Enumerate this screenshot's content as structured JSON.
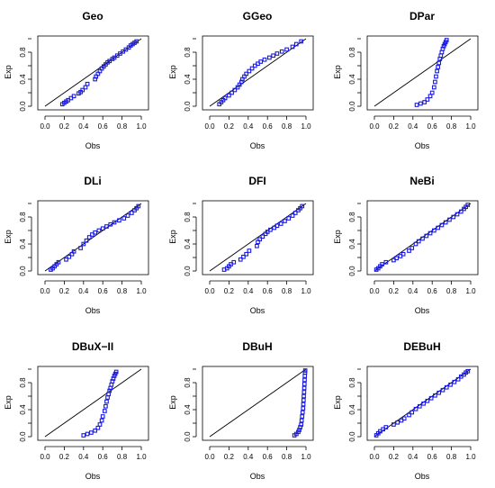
{
  "chart_data": [
    {
      "type": "scatter",
      "title": "Geo",
      "xlabel": "Obs",
      "ylabel": "Exp",
      "xlim": [
        0,
        1
      ],
      "ylim": [
        0,
        1
      ],
      "x_ticks": [
        "0.0",
        "0.2",
        "0.4",
        "0.6",
        "0.8",
        "1.0"
      ],
      "y_ticks": [
        "0.0",
        "0.4",
        "0.8"
      ],
      "reference_line": {
        "from": [
          0,
          0
        ],
        "to": [
          1,
          1
        ],
        "color": "#000000"
      },
      "point_color": "#1a1ae6",
      "grid": false,
      "points": [
        [
          0.18,
          0.03
        ],
        [
          0.2,
          0.05
        ],
        [
          0.22,
          0.07
        ],
        [
          0.24,
          0.09
        ],
        [
          0.27,
          0.12
        ],
        [
          0.3,
          0.15
        ],
        [
          0.35,
          0.19
        ],
        [
          0.37,
          0.21
        ],
        [
          0.39,
          0.24
        ],
        [
          0.42,
          0.28
        ],
        [
          0.44,
          0.33
        ],
        [
          0.52,
          0.4
        ],
        [
          0.53,
          0.44
        ],
        [
          0.55,
          0.48
        ],
        [
          0.57,
          0.52
        ],
        [
          0.59,
          0.56
        ],
        [
          0.61,
          0.59
        ],
        [
          0.63,
          0.62
        ],
        [
          0.65,
          0.65
        ],
        [
          0.67,
          0.67
        ],
        [
          0.7,
          0.7
        ],
        [
          0.72,
          0.72
        ],
        [
          0.75,
          0.75
        ],
        [
          0.78,
          0.78
        ],
        [
          0.81,
          0.81
        ],
        [
          0.84,
          0.84
        ],
        [
          0.87,
          0.87
        ],
        [
          0.89,
          0.9
        ],
        [
          0.91,
          0.92
        ],
        [
          0.93,
          0.94
        ],
        [
          0.95,
          0.96
        ]
      ]
    },
    {
      "type": "scatter",
      "title": "GGeo",
      "xlabel": "Obs",
      "ylabel": "Exp",
      "xlim": [
        0,
        1
      ],
      "ylim": [
        0,
        1
      ],
      "x_ticks": [
        "0.0",
        "0.2",
        "0.4",
        "0.6",
        "0.8",
        "1.0"
      ],
      "y_ticks": [
        "0.0",
        "0.4",
        "0.8"
      ],
      "reference_line": {
        "from": [
          0,
          0
        ],
        "to": [
          1,
          1
        ],
        "color": "#000000"
      },
      "point_color": "#1a1ae6",
      "grid": false,
      "points": [
        [
          0.1,
          0.03
        ],
        [
          0.12,
          0.06
        ],
        [
          0.14,
          0.09
        ],
        [
          0.16,
          0.12
        ],
        [
          0.2,
          0.16
        ],
        [
          0.23,
          0.2
        ],
        [
          0.26,
          0.24
        ],
        [
          0.29,
          0.28
        ],
        [
          0.31,
          0.32
        ],
        [
          0.33,
          0.36
        ],
        [
          0.34,
          0.4
        ],
        [
          0.36,
          0.44
        ],
        [
          0.38,
          0.48
        ],
        [
          0.41,
          0.52
        ],
        [
          0.44,
          0.56
        ],
        [
          0.47,
          0.6
        ],
        [
          0.5,
          0.63
        ],
        [
          0.53,
          0.66
        ],
        [
          0.57,
          0.69
        ],
        [
          0.62,
          0.72
        ],
        [
          0.66,
          0.75
        ],
        [
          0.7,
          0.78
        ],
        [
          0.75,
          0.81
        ],
        [
          0.8,
          0.84
        ],
        [
          0.86,
          0.88
        ],
        [
          0.9,
          0.92
        ],
        [
          0.95,
          0.96
        ]
      ]
    },
    {
      "type": "scatter",
      "title": "DPar",
      "xlabel": "Obs",
      "ylabel": "Exp",
      "xlim": [
        0,
        1
      ],
      "ylim": [
        0,
        1
      ],
      "x_ticks": [
        "0.0",
        "0.2",
        "0.4",
        "0.6",
        "0.8",
        "1.0"
      ],
      "y_ticks": [
        "0.0",
        "0.4",
        "0.8"
      ],
      "reference_line": {
        "from": [
          0,
          0
        ],
        "to": [
          1,
          1
        ],
        "color": "#000000"
      },
      "point_color": "#1a1ae6",
      "grid": false,
      "points": [
        [
          0.44,
          0.02
        ],
        [
          0.48,
          0.04
        ],
        [
          0.52,
          0.06
        ],
        [
          0.55,
          0.1
        ],
        [
          0.58,
          0.15
        ],
        [
          0.6,
          0.2
        ],
        [
          0.62,
          0.28
        ],
        [
          0.63,
          0.36
        ],
        [
          0.64,
          0.44
        ],
        [
          0.65,
          0.52
        ],
        [
          0.66,
          0.58
        ],
        [
          0.67,
          0.64
        ],
        [
          0.68,
          0.7
        ],
        [
          0.69,
          0.75
        ],
        [
          0.7,
          0.8
        ],
        [
          0.71,
          0.85
        ],
        [
          0.72,
          0.89
        ],
        [
          0.73,
          0.92
        ],
        [
          0.74,
          0.95
        ],
        [
          0.75,
          0.98
        ]
      ]
    },
    {
      "type": "scatter",
      "title": "DLi",
      "xlabel": "Obs",
      "ylabel": "Exp",
      "xlim": [
        0,
        1
      ],
      "ylim": [
        0,
        1
      ],
      "x_ticks": [
        "0.0",
        "0.2",
        "0.4",
        "0.6",
        "0.8",
        "1.0"
      ],
      "y_ticks": [
        "0.0",
        "0.4",
        "0.8"
      ],
      "reference_line": {
        "from": [
          0,
          0
        ],
        "to": [
          1,
          1
        ],
        "color": "#000000"
      },
      "point_color": "#1a1ae6",
      "grid": false,
      "points": [
        [
          0.06,
          0.02
        ],
        [
          0.08,
          0.04
        ],
        [
          0.1,
          0.07
        ],
        [
          0.12,
          0.1
        ],
        [
          0.14,
          0.13
        ],
        [
          0.22,
          0.17
        ],
        [
          0.25,
          0.21
        ],
        [
          0.28,
          0.25
        ],
        [
          0.3,
          0.29
        ],
        [
          0.37,
          0.34
        ],
        [
          0.4,
          0.4
        ],
        [
          0.43,
          0.45
        ],
        [
          0.46,
          0.5
        ],
        [
          0.49,
          0.54
        ],
        [
          0.52,
          0.57
        ],
        [
          0.56,
          0.6
        ],
        [
          0.6,
          0.63
        ],
        [
          0.64,
          0.66
        ],
        [
          0.68,
          0.69
        ],
        [
          0.72,
          0.72
        ],
        [
          0.77,
          0.75
        ],
        [
          0.82,
          0.78
        ],
        [
          0.86,
          0.82
        ],
        [
          0.9,
          0.86
        ],
        [
          0.93,
          0.9
        ],
        [
          0.95,
          0.93
        ],
        [
          0.97,
          0.96
        ]
      ]
    },
    {
      "type": "scatter",
      "title": "DFI",
      "xlabel": "Obs",
      "ylabel": "Exp",
      "xlim": [
        0,
        1
      ],
      "ylim": [
        0,
        1
      ],
      "x_ticks": [
        "0.0",
        "0.2",
        "0.4",
        "0.6",
        "0.8",
        "1.0"
      ],
      "y_ticks": [
        "0.0",
        "0.4",
        "0.8"
      ],
      "reference_line": {
        "from": [
          0,
          0
        ],
        "to": [
          1,
          1
        ],
        "color": "#000000"
      },
      "point_color": "#1a1ae6",
      "grid": false,
      "points": [
        [
          0.15,
          0.02
        ],
        [
          0.18,
          0.04
        ],
        [
          0.2,
          0.07
        ],
        [
          0.22,
          0.1
        ],
        [
          0.25,
          0.13
        ],
        [
          0.32,
          0.17
        ],
        [
          0.35,
          0.21
        ],
        [
          0.38,
          0.25
        ],
        [
          0.41,
          0.3
        ],
        [
          0.49,
          0.37
        ],
        [
          0.5,
          0.43
        ],
        [
          0.52,
          0.47
        ],
        [
          0.55,
          0.51
        ],
        [
          0.58,
          0.55
        ],
        [
          0.6,
          0.58
        ],
        [
          0.63,
          0.61
        ],
        [
          0.67,
          0.64
        ],
        [
          0.7,
          0.67
        ],
        [
          0.74,
          0.7
        ],
        [
          0.78,
          0.74
        ],
        [
          0.82,
          0.78
        ],
        [
          0.86,
          0.82
        ],
        [
          0.89,
          0.86
        ],
        [
          0.92,
          0.9
        ],
        [
          0.94,
          0.93
        ],
        [
          0.96,
          0.96
        ]
      ]
    },
    {
      "type": "scatter",
      "title": "NeBi",
      "xlabel": "Obs",
      "ylabel": "Exp",
      "xlim": [
        0,
        1
      ],
      "ylim": [
        0,
        1
      ],
      "x_ticks": [
        "0.0",
        "0.2",
        "0.4",
        "0.6",
        "0.8",
        "1.0"
      ],
      "y_ticks": [
        "0.0",
        "0.4",
        "0.8"
      ],
      "reference_line": {
        "from": [
          0,
          0
        ],
        "to": [
          1,
          1
        ],
        "color": "#000000"
      },
      "point_color": "#1a1ae6",
      "grid": false,
      "points": [
        [
          0.02,
          0.02
        ],
        [
          0.04,
          0.04
        ],
        [
          0.06,
          0.07
        ],
        [
          0.08,
          0.1
        ],
        [
          0.12,
          0.13
        ],
        [
          0.2,
          0.16
        ],
        [
          0.23,
          0.19
        ],
        [
          0.27,
          0.22
        ],
        [
          0.3,
          0.25
        ],
        [
          0.36,
          0.3
        ],
        [
          0.39,
          0.34
        ],
        [
          0.43,
          0.4
        ],
        [
          0.46,
          0.44
        ],
        [
          0.5,
          0.48
        ],
        [
          0.54,
          0.52
        ],
        [
          0.58,
          0.56
        ],
        [
          0.62,
          0.6
        ],
        [
          0.66,
          0.64
        ],
        [
          0.7,
          0.68
        ],
        [
          0.74,
          0.72
        ],
        [
          0.78,
          0.76
        ],
        [
          0.82,
          0.8
        ],
        [
          0.86,
          0.84
        ],
        [
          0.9,
          0.88
        ],
        [
          0.93,
          0.92
        ],
        [
          0.95,
          0.95
        ],
        [
          0.97,
          0.98
        ]
      ]
    },
    {
      "type": "scatter",
      "title": "DBuX−II",
      "xlabel": "Obs",
      "ylabel": "Exp",
      "xlim": [
        0,
        1
      ],
      "ylim": [
        0,
        1
      ],
      "x_ticks": [
        "0.0",
        "0.2",
        "0.4",
        "0.6",
        "0.8",
        "1.0"
      ],
      "y_ticks": [
        "0.0",
        "0.4",
        "0.8"
      ],
      "reference_line": {
        "from": [
          0,
          0
        ],
        "to": [
          1,
          1
        ],
        "color": "#000000"
      },
      "point_color": "#1a1ae6",
      "grid": false,
      "points": [
        [
          0.4,
          0.02
        ],
        [
          0.44,
          0.04
        ],
        [
          0.48,
          0.06
        ],
        [
          0.52,
          0.09
        ],
        [
          0.55,
          0.13
        ],
        [
          0.57,
          0.18
        ],
        [
          0.59,
          0.24
        ],
        [
          0.6,
          0.3
        ],
        [
          0.62,
          0.38
        ],
        [
          0.63,
          0.45
        ],
        [
          0.64,
          0.52
        ],
        [
          0.65,
          0.58
        ],
        [
          0.66,
          0.63
        ],
        [
          0.67,
          0.68
        ],
        [
          0.68,
          0.72
        ],
        [
          0.69,
          0.77
        ],
        [
          0.7,
          0.82
        ],
        [
          0.71,
          0.86
        ],
        [
          0.72,
          0.9
        ],
        [
          0.73,
          0.93
        ],
        [
          0.74,
          0.96
        ]
      ]
    },
    {
      "type": "scatter",
      "title": "DBuH",
      "xlabel": "Obs",
      "ylabel": "Exp",
      "xlim": [
        0,
        1
      ],
      "ylim": [
        0,
        1
      ],
      "x_ticks": [
        "0.0",
        "0.2",
        "0.4",
        "0.6",
        "0.8",
        "1.0"
      ],
      "y_ticks": [
        "0.0",
        "0.4",
        "0.8"
      ],
      "reference_line": {
        "from": [
          0,
          0
        ],
        "to": [
          1,
          1
        ],
        "color": "#000000"
      },
      "point_color": "#1a1ae6",
      "grid": false,
      "points": [
        [
          0.88,
          0.02
        ],
        [
          0.9,
          0.04
        ],
        [
          0.92,
          0.07
        ],
        [
          0.93,
          0.1
        ],
        [
          0.94,
          0.14
        ],
        [
          0.95,
          0.18
        ],
        [
          0.955,
          0.24
        ],
        [
          0.96,
          0.3
        ],
        [
          0.965,
          0.36
        ],
        [
          0.97,
          0.42
        ],
        [
          0.972,
          0.48
        ],
        [
          0.975,
          0.54
        ],
        [
          0.977,
          0.6
        ],
        [
          0.98,
          0.66
        ],
        [
          0.982,
          0.72
        ],
        [
          0.984,
          0.78
        ],
        [
          0.986,
          0.84
        ],
        [
          0.988,
          0.9
        ],
        [
          0.99,
          0.95
        ],
        [
          0.992,
          0.98
        ]
      ]
    },
    {
      "type": "scatter",
      "title": "DEBuH",
      "xlabel": "Obs",
      "ylabel": "Exp",
      "xlim": [
        0,
        1
      ],
      "ylim": [
        0,
        1
      ],
      "x_ticks": [
        "0.0",
        "0.2",
        "0.4",
        "0.6",
        "0.8",
        "1.0"
      ],
      "y_ticks": [
        "0.0",
        "0.4",
        "0.8"
      ],
      "reference_line": {
        "from": [
          0,
          0
        ],
        "to": [
          1,
          1
        ],
        "color": "#000000"
      },
      "point_color": "#1a1ae6",
      "grid": false,
      "points": [
        [
          0.02,
          0.02
        ],
        [
          0.04,
          0.05
        ],
        [
          0.06,
          0.08
        ],
        [
          0.09,
          0.11
        ],
        [
          0.12,
          0.14
        ],
        [
          0.2,
          0.18
        ],
        [
          0.24,
          0.21
        ],
        [
          0.28,
          0.24
        ],
        [
          0.31,
          0.27
        ],
        [
          0.36,
          0.32
        ],
        [
          0.39,
          0.36
        ],
        [
          0.43,
          0.41
        ],
        [
          0.47,
          0.45
        ],
        [
          0.51,
          0.49
        ],
        [
          0.55,
          0.53
        ],
        [
          0.59,
          0.57
        ],
        [
          0.63,
          0.61
        ],
        [
          0.67,
          0.65
        ],
        [
          0.71,
          0.69
        ],
        [
          0.75,
          0.73
        ],
        [
          0.79,
          0.77
        ],
        [
          0.83,
          0.81
        ],
        [
          0.87,
          0.85
        ],
        [
          0.9,
          0.89
        ],
        [
          0.93,
          0.92
        ],
        [
          0.95,
          0.95
        ],
        [
          0.97,
          0.97
        ]
      ]
    }
  ]
}
